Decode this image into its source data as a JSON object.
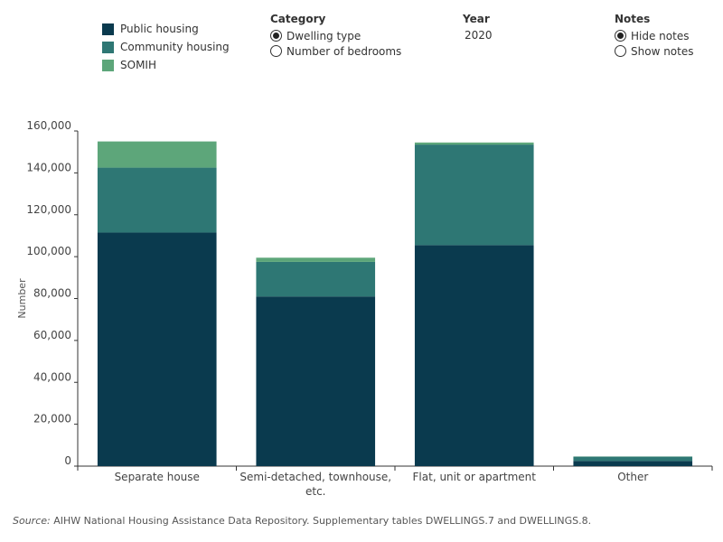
{
  "legend": {
    "items": [
      {
        "label": "Public housing",
        "color": "#0a3a4e"
      },
      {
        "label": "Community housing",
        "color": "#2e7774"
      },
      {
        "label": "SOMIH",
        "color": "#5da67a"
      }
    ]
  },
  "controls": {
    "category": {
      "title": "Category",
      "options": [
        "Dwelling type",
        "Number of bedrooms"
      ],
      "selected": 0
    },
    "year": {
      "title": "Year",
      "value": "2020"
    },
    "notes": {
      "title": "Notes",
      "options": [
        "Hide notes",
        "Show notes"
      ],
      "selected": 0
    }
  },
  "chart_data": {
    "type": "bar",
    "stacked": true,
    "categories": [
      "Separate house",
      "Semi-detached, townhouse, etc.",
      "Flat, unit or apartment",
      "Other"
    ],
    "category_lines": [
      [
        "Separate house"
      ],
      [
        "Semi-detached, townhouse,",
        "etc."
      ],
      [
        "Flat, unit or apartment"
      ],
      [
        "Other"
      ]
    ],
    "series": [
      {
        "name": "Public housing",
        "values": [
          111500,
          81000,
          105500,
          2500
        ],
        "color": "#0a3a4e"
      },
      {
        "name": "Community housing",
        "values": [
          31000,
          16500,
          48000,
          2000
        ],
        "color": "#2e7774"
      },
      {
        "name": "SOMIH",
        "values": [
          12500,
          2000,
          1000,
          100
        ],
        "color": "#5da67a"
      }
    ],
    "ylabel": "Number",
    "ylim": [
      0,
      160000
    ],
    "yticks": [
      0,
      20000,
      40000,
      60000,
      80000,
      100000,
      120000,
      140000,
      160000
    ],
    "ytick_labels": [
      "0",
      "20,000",
      "40,000",
      "60,000",
      "80,000",
      "100,000",
      "120,000",
      "140,000",
      "160,000"
    ],
    "grid": false
  },
  "footer": {
    "source_label": "Source:",
    "source_text": " AIHW National Housing Assistance Data Repository. Supplementary tables DWELLINGS.7 and DWELLINGS.8."
  }
}
